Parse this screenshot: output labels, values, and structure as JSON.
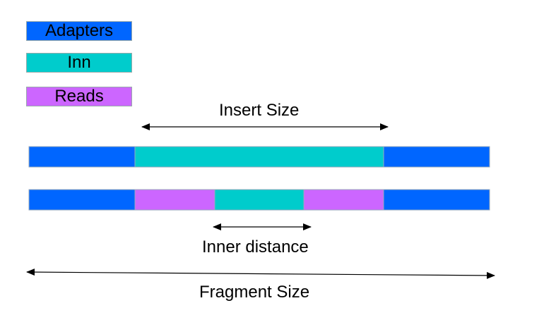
{
  "legend": {
    "items": [
      {
        "label": "Adapters",
        "color": "#0066ff"
      },
      {
        "label": "Inn",
        "color": "#00cccc"
      },
      {
        "label": "Reads",
        "color": "#cc66ff"
      }
    ]
  },
  "labels": {
    "insert_size": "Insert Size",
    "inner_distance": "Inner distance",
    "fragment_size": "Fragment Size"
  },
  "colors": {
    "adapter": "#0066ff",
    "insert": "#00cccc",
    "read": "#cc66ff",
    "arrow": "#000000"
  }
}
